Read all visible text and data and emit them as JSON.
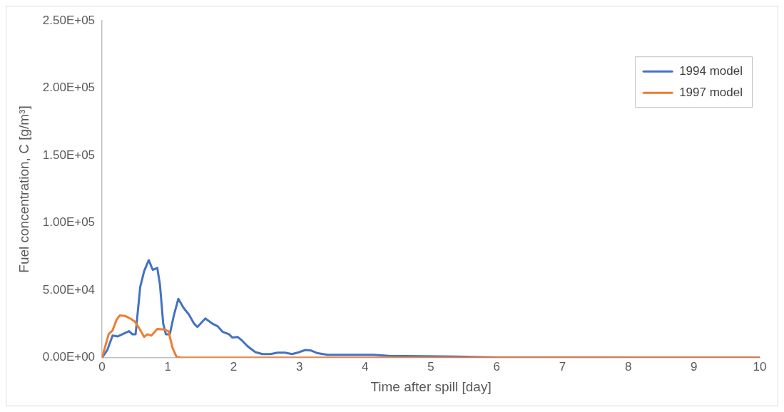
{
  "chart_data": {
    "type": "line",
    "xlabel": "Time after spill [day]",
    "ylabel": "Fuel concentration, C [g/m³]",
    "xlim": [
      0,
      10
    ],
    "xticks": [
      0,
      1,
      2,
      3,
      4,
      5,
      6,
      7,
      8,
      9,
      10
    ],
    "ylim": [
      0,
      250000
    ],
    "yticks": [
      {
        "value": 0,
        "label": "0.00E+00"
      },
      {
        "value": 50000,
        "label": "5.00E+04"
      },
      {
        "value": 100000,
        "label": "1.00E+05"
      },
      {
        "value": 150000,
        "label": "1.50E+05"
      },
      {
        "value": 200000,
        "label": "2.00E+05"
      },
      {
        "value": 250000,
        "label": "2.50E+05"
      }
    ],
    "grid": false,
    "legend": "top right",
    "marker": "none",
    "line_style": "solid",
    "series": [
      {
        "name": "1994 model",
        "color": "#4472c4",
        "x": [
          0,
          0.08,
          0.16,
          0.24,
          0.31,
          0.41,
          0.46,
          0.51,
          0.58,
          0.64,
          0.71,
          0.77,
          0.84,
          0.88,
          0.93,
          0.97,
          1.03,
          1.09,
          1.16,
          1.24,
          1.32,
          1.4,
          1.45,
          1.57,
          1.68,
          1.76,
          1.83,
          1.93,
          1.98,
          2.06,
          2.12,
          2.21,
          2.33,
          2.44,
          2.56,
          2.67,
          2.78,
          2.89,
          2.97,
          3.09,
          3.18,
          3.28,
          3.43,
          3.6,
          4.13,
          4.36,
          5.38,
          6,
          10
        ],
        "values": [
          0,
          5700,
          16400,
          15800,
          17400,
          19700,
          17400,
          17400,
          52500,
          64200,
          72400,
          65200,
          66600,
          54400,
          25200,
          17400,
          17400,
          31000,
          43700,
          36900,
          32000,
          25200,
          22800,
          29100,
          25200,
          23200,
          19300,
          17400,
          15000,
          15400,
          13100,
          8600,
          4100,
          2700,
          2700,
          3700,
          3700,
          2700,
          3700,
          5700,
          5300,
          3300,
          2100,
          2100,
          2100,
          1300,
          800,
          200,
          0
        ]
      },
      {
        "name": "1997 model",
        "color": "#ed7d31",
        "x": [
          0,
          0.1,
          0.16,
          0.22,
          0.27,
          0.35,
          0.44,
          0.5,
          0.56,
          0.64,
          0.69,
          0.75,
          0.84,
          0.94,
          1.01,
          1.07,
          1.13,
          1.19,
          10
        ],
        "values": [
          0,
          17400,
          20300,
          28100,
          31400,
          31000,
          28700,
          26700,
          22200,
          15400,
          17400,
          16400,
          21300,
          20900,
          19700,
          7600,
          800,
          0,
          0
        ]
      }
    ]
  }
}
